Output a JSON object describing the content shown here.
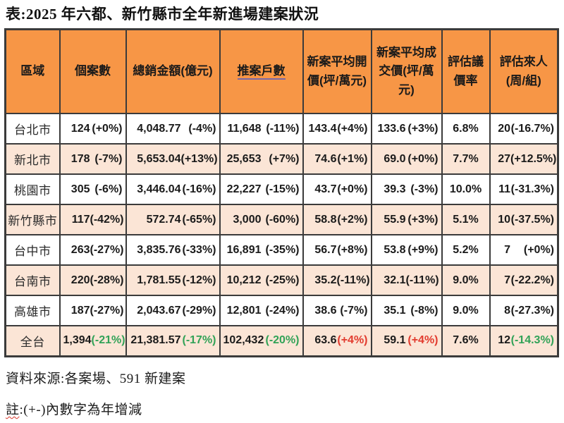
{
  "title": "表:2025 年六都、新竹縣市全年新進場建案狀況",
  "footnotes": {
    "source": "資料來源:各案場、591 新建案",
    "note_prefix": "註",
    "note_rest": ":(+-)內數字為年增減"
  },
  "colors": {
    "header_bg": "#F79646",
    "stripe_bg": "#FBE5D6",
    "border": "#3B3B3B",
    "green": "#31A257",
    "red": "#E23B2E",
    "header_link_underline": "#7668A8"
  },
  "chart_data": {
    "type": "table",
    "title": "表:2025 年六都、新竹縣市全年新進場建案狀況",
    "columns": [
      "區域",
      "個案數",
      "總銷金額(億元)",
      "推案戶數",
      "新案平均開價(坪/萬元)",
      "新案平均成交價(坪/萬元)",
      "評估議價率",
      "評估來人(周/組)"
    ],
    "underlined_column": "推案戶數",
    "rows": [
      {
        "region": "台北市",
        "bold": false,
        "cells": [
          {
            "v": "124",
            "p": "(+0%)"
          },
          {
            "v": "4,048.77",
            "p": "(-4%)"
          },
          {
            "v": "11,648",
            "p": "(-11%)"
          },
          {
            "v": "143.4",
            "p": "(+4%)"
          },
          {
            "v": "133.6",
            "p": "(+3%)"
          },
          {
            "v": "6.8%",
            "p": ""
          },
          {
            "v": "20",
            "p": "(-16.7%)"
          }
        ]
      },
      {
        "region": "新北市",
        "bold": false,
        "cells": [
          {
            "v": "178",
            "p": "(-7%)"
          },
          {
            "v": "5,653.04",
            "p": "(+13%)"
          },
          {
            "v": "25,653",
            "p": "(+7%)"
          },
          {
            "v": "74.6",
            "p": "(+1%)"
          },
          {
            "v": "69.0",
            "p": "(+0%)"
          },
          {
            "v": "7.7%",
            "p": ""
          },
          {
            "v": "27",
            "p": "(+12.5%)"
          }
        ]
      },
      {
        "region": "桃園市",
        "bold": false,
        "cells": [
          {
            "v": "305",
            "p": "(-6%)"
          },
          {
            "v": "3,446.04",
            "p": "(-16%)"
          },
          {
            "v": "22,227",
            "p": "(-15%)"
          },
          {
            "v": "43.7",
            "p": "(+0%)"
          },
          {
            "v": "39.3",
            "p": "(-3%)"
          },
          {
            "v": "10.0%",
            "p": ""
          },
          {
            "v": "11",
            "p": "(-31.3%)"
          }
        ]
      },
      {
        "region": "新竹縣市",
        "bold": false,
        "cells": [
          {
            "v": "117",
            "p": "(-42%)"
          },
          {
            "v": "572.74",
            "p": "(-65%)"
          },
          {
            "v": "3,000",
            "p": "(-60%)"
          },
          {
            "v": "58.8",
            "p": "(+2%)"
          },
          {
            "v": "55.9",
            "p": "(+3%)"
          },
          {
            "v": "5.1%",
            "p": ""
          },
          {
            "v": "10",
            "p": "(-37.5%)"
          }
        ]
      },
      {
        "region": "台中市",
        "bold": false,
        "cells": [
          {
            "v": "263",
            "p": "(-27%)"
          },
          {
            "v": "3,835.76",
            "p": "(-33%)"
          },
          {
            "v": "16,891",
            "p": "(-35%)"
          },
          {
            "v": "56.7",
            "p": "(+8%)"
          },
          {
            "v": "53.8",
            "p": "(+9%)"
          },
          {
            "v": "5.2%",
            "p": ""
          },
          {
            "v": "7",
            "p": "(+0%)"
          }
        ]
      },
      {
        "region": "台南市",
        "bold": false,
        "cells": [
          {
            "v": "220",
            "p": "(-28%)"
          },
          {
            "v": "1,781.55",
            "p": "(-12%)"
          },
          {
            "v": "10,212",
            "p": "(-25%)"
          },
          {
            "v": "35.2",
            "p": "(-11%)"
          },
          {
            "v": "32.1",
            "p": "(-11%)"
          },
          {
            "v": "9.0%",
            "p": ""
          },
          {
            "v": "7",
            "p": "(-22.2%)"
          }
        ]
      },
      {
        "region": "高雄市",
        "bold": false,
        "cells": [
          {
            "v": "187",
            "p": "(-27%)"
          },
          {
            "v": "2,043.67",
            "p": "(-29%)"
          },
          {
            "v": "12,801",
            "p": "(-24%)"
          },
          {
            "v": "38.6",
            "p": "(-7%)"
          },
          {
            "v": "35.1",
            "p": "(-8%)"
          },
          {
            "v": "9.0%",
            "p": ""
          },
          {
            "v": "8",
            "p": "(-27.3%)"
          }
        ]
      },
      {
        "region": "全台",
        "bold": true,
        "cells": [
          {
            "v": "1,394",
            "p": "(-21%)",
            "pc": "green"
          },
          {
            "v": "21,381.57",
            "p": "(-17%)",
            "pc": "green"
          },
          {
            "v": "102,432",
            "p": "(-20%)",
            "pc": "green"
          },
          {
            "v": "63.6",
            "p": "(+4%)",
            "pc": "red"
          },
          {
            "v": "59.1",
            "p": "(+4%)",
            "pc": "red"
          },
          {
            "v": "7.6%",
            "p": ""
          },
          {
            "v": "12",
            "p": "(-14.3%)",
            "pc": "green"
          }
        ]
      }
    ]
  }
}
